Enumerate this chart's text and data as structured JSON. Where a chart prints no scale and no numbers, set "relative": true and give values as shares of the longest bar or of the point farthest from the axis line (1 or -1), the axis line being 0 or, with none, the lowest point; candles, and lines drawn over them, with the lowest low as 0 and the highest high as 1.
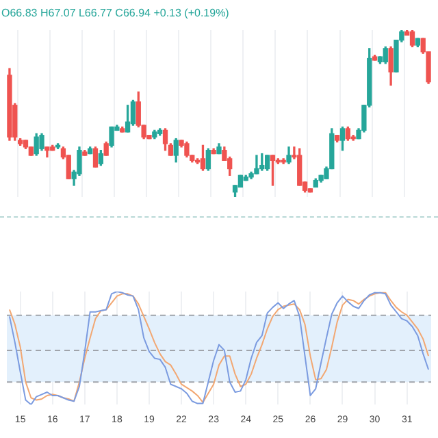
{
  "chart_data": [
    {
      "type": "candlestick",
      "relative": true,
      "tick_labels": false,
      "grid": "x",
      "legend": false,
      "annotations": [
        "O66.83 H67.07 L66.77 C66.94 +0.13 (+0.19%)"
      ],
      "categories": [
        null,
        null,
        "15",
        null,
        null,
        null,
        null,
        null,
        "16",
        null,
        null,
        null,
        null,
        null,
        "17",
        null,
        null,
        null,
        null,
        null,
        "18",
        null,
        null,
        null,
        null,
        null,
        "19",
        null,
        null,
        null,
        null,
        null,
        "22",
        null,
        null,
        null,
        null,
        null,
        "23",
        null,
        null,
        null,
        null,
        null,
        "24",
        null,
        null,
        null,
        null,
        null,
        "25",
        null,
        null,
        null,
        null,
        null,
        "26",
        null,
        null,
        null,
        null,
        null,
        "29",
        null,
        null,
        null,
        null,
        null,
        "30",
        null,
        null,
        null,
        null,
        null,
        "31",
        null,
        null,
        null,
        null
      ],
      "ohlc": [
        [
          0.73,
          0.77,
          0.34,
          0.36
        ],
        [
          0.55,
          0.56,
          0.34,
          0.36
        ],
        [
          0.34,
          0.35,
          0.31,
          0.32
        ],
        [
          0.34,
          0.34,
          0.29,
          0.3
        ],
        [
          0.3,
          0.3,
          0.25,
          0.25
        ],
        [
          0.26,
          0.38,
          0.25,
          0.36
        ],
        [
          0.29,
          0.38,
          0.28,
          0.37
        ],
        [
          0.3,
          0.3,
          0.24,
          0.28
        ],
        [
          0.3,
          0.31,
          0.28,
          0.28
        ],
        [
          0.3,
          0.32,
          0.29,
          0.31
        ],
        [
          0.29,
          0.3,
          0.23,
          0.24
        ],
        [
          0.25,
          0.25,
          0.11,
          0.11
        ],
        [
          0.11,
          0.16,
          0.07,
          0.15
        ],
        [
          0.14,
          0.3,
          0.13,
          0.28
        ],
        [
          0.27,
          0.28,
          0.25,
          0.25
        ],
        [
          0.26,
          0.3,
          0.26,
          0.29
        ],
        [
          0.29,
          0.3,
          0.18,
          0.18
        ],
        [
          0.2,
          0.28,
          0.19,
          0.26
        ],
        [
          0.32,
          0.33,
          0.25,
          0.25
        ],
        [
          0.31,
          0.42,
          0.3,
          0.42
        ],
        [
          0.4,
          0.43,
          0.4,
          0.42
        ],
        [
          0.41,
          0.42,
          0.39,
          0.39
        ],
        [
          0.39,
          0.55,
          0.39,
          0.45
        ],
        [
          0.44,
          0.58,
          0.43,
          0.57
        ],
        [
          0.57,
          0.63,
          0.42,
          0.43
        ],
        [
          0.43,
          0.43,
          0.35,
          0.36
        ],
        [
          0.37,
          0.37,
          0.35,
          0.35
        ],
        [
          0.36,
          0.4,
          0.35,
          0.39
        ],
        [
          0.38,
          0.41,
          0.37,
          0.4
        ],
        [
          0.4,
          0.41,
          0.28,
          0.32
        ],
        [
          0.31,
          0.32,
          0.25,
          0.25
        ],
        [
          0.25,
          0.35,
          0.21,
          0.34
        ],
        [
          0.34,
          0.34,
          0.3,
          0.31
        ],
        [
          0.32,
          0.33,
          0.24,
          0.25
        ],
        [
          0.25,
          0.25,
          0.21,
          0.22
        ],
        [
          0.22,
          0.23,
          0.2,
          0.21
        ],
        [
          0.23,
          0.31,
          0.16,
          0.17
        ],
        [
          0.17,
          0.29,
          0.16,
          0.28
        ],
        [
          0.28,
          0.29,
          0.26,
          0.26
        ],
        [
          0.26,
          0.32,
          0.26,
          0.3
        ],
        [
          0.28,
          0.3,
          0.22,
          0.22
        ],
        [
          0.23,
          0.24,
          0.13,
          0.17
        ],
        [
          0.03,
          0.07,
          0,
          0.07
        ],
        [
          0.06,
          0.13,
          0.06,
          0.13
        ],
        [
          0.1,
          0.13,
          0.1,
          0.12
        ],
        [
          0.12,
          0.15,
          0.11,
          0.14
        ],
        [
          0.14,
          0.25,
          0.14,
          0.17
        ],
        [
          0.17,
          0.26,
          0.16,
          0.19
        ],
        [
          0.17,
          0.25,
          0.16,
          0.25
        ],
        [
          0.25,
          0.25,
          0.07,
          0.22
        ],
        [
          0.22,
          0.23,
          0.2,
          0.21
        ],
        [
          0.22,
          0.23,
          0.2,
          0.21
        ],
        [
          0.21,
          0.3,
          0.2,
          0.25
        ],
        [
          0.25,
          0.3,
          0.23,
          0.24
        ],
        [
          0.25,
          0.29,
          0.07,
          0.07
        ],
        [
          0.09,
          0.09,
          0.03,
          0.04
        ],
        [
          0.05,
          0.05,
          0.03,
          0.03
        ],
        [
          0.06,
          0.11,
          0.06,
          0.1
        ],
        [
          0.1,
          0.13,
          0.09,
          0.13
        ],
        [
          0.11,
          0.18,
          0.11,
          0.17
        ],
        [
          0.17,
          0.41,
          0.17,
          0.38
        ],
        [
          0.37,
          0.37,
          0.33,
          0.34
        ],
        [
          0.34,
          0.42,
          0.28,
          0.41
        ],
        [
          0.41,
          0.42,
          0.34,
          0.35
        ],
        [
          0.36,
          0.37,
          0.34,
          0.35
        ],
        [
          0.35,
          0.41,
          0.35,
          0.4
        ],
        [
          0.4,
          0.55,
          0.39,
          0.55
        ],
        [
          0.55,
          0.89,
          0.54,
          0.83
        ],
        [
          0.84,
          0.85,
          0.82,
          0.82
        ],
        [
          0.81,
          0.84,
          0.8,
          0.84
        ],
        [
          0.81,
          0.9,
          0.8,
          0.89
        ],
        [
          0.89,
          0.9,
          0.67,
          0.75
        ],
        [
          0.75,
          0.94,
          0.75,
          0.94
        ],
        [
          0.94,
          1,
          0.93,
          0.99
        ],
        [
          0.99,
          1,
          0.97,
          0.97
        ],
        [
          0.99,
          1,
          0.9,
          0.91
        ],
        [
          0.91,
          0.95,
          0.9,
          0.95
        ],
        [
          0.95,
          0.95,
          0.86,
          0.87
        ],
        [
          0.87,
          0.87,
          0.68,
          0.69
        ]
      ],
      "colors": [
        "#ef5350",
        "#ef5350",
        "#ef5350",
        "#ef5350",
        "#ef5350",
        "#26a69a",
        "#26a69a",
        "#ef5350",
        "#ef5350",
        "#26a69a",
        "#ef5350",
        "#ef5350",
        "#26a69a",
        "#26a69a",
        "#ef5350",
        "#26a69a",
        "#ef5350",
        "#26a69a",
        "#ef5350",
        "#26a69a",
        "#26a69a",
        "#ef5350",
        "#26a69a",
        "#26a69a",
        "#ef5350",
        "#ef5350",
        "#ef5350",
        "#26a69a",
        "#26a69a",
        "#ef5350",
        "#ef5350",
        "#26a69a",
        "#ef5350",
        "#ef5350",
        "#ef5350",
        "#ef5350",
        "#ef5350",
        "#26a69a",
        "#ef5350",
        "#26a69a",
        "#ef5350",
        "#ef5350",
        "#26a69a",
        "#26a69a",
        "#26a69a",
        "#26a69a",
        "#26a69a",
        "#26a69a",
        "#26a69a",
        "#ef5350",
        "#ef5350",
        "#ef5350",
        "#26a69a",
        "#ef5350",
        "#ef5350",
        "#ef5350",
        "#ef5350",
        "#26a69a",
        "#26a69a",
        "#26a69a",
        "#26a69a",
        "#ef5350",
        "#26a69a",
        "#ef5350",
        "#ef5350",
        "#26a69a",
        "#26a69a",
        "#26a69a",
        "#ef5350",
        "#26a69a",
        "#26a69a",
        "#ef5350",
        "#26a69a",
        "#26a69a",
        "#ef5350",
        "#ef5350",
        "#26a69a",
        "#ef5350",
        "#ef5350"
      ]
    },
    {
      "type": "line",
      "relative": true,
      "grid": "x",
      "legend": false,
      "marker": "none",
      "categories": [
        null,
        null,
        "15",
        null,
        null,
        null,
        null,
        null,
        "16",
        null,
        null,
        null,
        null,
        null,
        "17",
        null,
        null,
        null,
        null,
        null,
        "18",
        null,
        null,
        null,
        null,
        null,
        "19",
        null,
        null,
        null,
        null,
        null,
        "22",
        null,
        null,
        null,
        null,
        null,
        "23",
        null,
        null,
        null,
        null,
        null,
        "24",
        null,
        null,
        null,
        null,
        null,
        "25",
        null,
        null,
        null,
        null,
        null,
        "26",
        null,
        null,
        null,
        null,
        null,
        "29",
        null,
        null,
        null,
        null,
        null,
        "30",
        null,
        null,
        null,
        null,
        null,
        "31",
        null,
        null,
        null,
        null
      ],
      "series": [
        {
          "color": "#7b9be0",
          "values": [
            0.78,
            0.55,
            0.29,
            0.04,
            0,
            0.07,
            0.09,
            0.11,
            0.08,
            0.08,
            0.06,
            0.04,
            0.03,
            0.16,
            0.47,
            0.82,
            0.82,
            0.83,
            0.84,
            0.98,
            1.0,
            0.99,
            0.97,
            0.96,
            0.84,
            0.59,
            0.47,
            0.41,
            0.4,
            0.33,
            0.18,
            0.16,
            0.14,
            0.1,
            0.03,
            0.01,
            0.01,
            0.2,
            0.39,
            0.53,
            0.48,
            0.2,
            0.11,
            0.12,
            0.22,
            0.41,
            0.55,
            0.61,
            0.81,
            0.86,
            0.9,
            0.85,
            0.89,
            0.92,
            0.78,
            0.43,
            0.08,
            0.14,
            0.37,
            0.59,
            0.8,
            0.9,
            0.96,
            0.91,
            0.87,
            0.85,
            0.92,
            0.97,
            0.99,
            0.99,
            0.98,
            0.88,
            0.82,
            0.76,
            0.74,
            0.69,
            0.61,
            0.45,
            0.31
          ]
        },
        {
          "color": "#f2a772",
          "values": [
            0.84,
            0.71,
            0.51,
            0.2,
            0.06,
            0.04,
            0.05,
            0.08,
            0.09,
            0.08,
            0.06,
            0.05,
            0.03,
            0.2,
            0.41,
            0.59,
            0.76,
            0.83,
            0.84,
            0.9,
            0.96,
            0.98,
            0.98,
            0.96,
            0.89,
            0.78,
            0.67,
            0.55,
            0.45,
            0.38,
            0.35,
            0.27,
            0.18,
            0.15,
            0.12,
            0.08,
            0.02,
            0.1,
            0.18,
            0.35,
            0.43,
            0.43,
            0.27,
            0.16,
            0.18,
            0.27,
            0.41,
            0.53,
            0.67,
            0.78,
            0.84,
            0.87,
            0.88,
            0.89,
            0.84,
            0.71,
            0.43,
            0.22,
            0.23,
            0.31,
            0.51,
            0.73,
            0.88,
            0.93,
            0.92,
            0.89,
            0.93,
            0.96,
            0.98,
            0.99,
            0.99,
            0.92,
            0.86,
            0.82,
            0.79,
            0.73,
            0.67,
            0.58,
            0.43
          ]
        }
      ],
      "bands": [
        {
          "axis": "y",
          "from": 0.2,
          "to": 0.79,
          "color": "#e3f0fc"
        }
      ],
      "ref_lines": [
        {
          "axis": "y",
          "value": 0.2,
          "line_style": "dashed",
          "color": "#a0a4ab"
        },
        {
          "axis": "y",
          "value": 0.48,
          "line_style": "dashed",
          "color": "#a0a4ab"
        },
        {
          "axis": "y",
          "value": 0.79,
          "line_style": "dashed",
          "color": "#a0a4ab"
        }
      ]
    }
  ]
}
